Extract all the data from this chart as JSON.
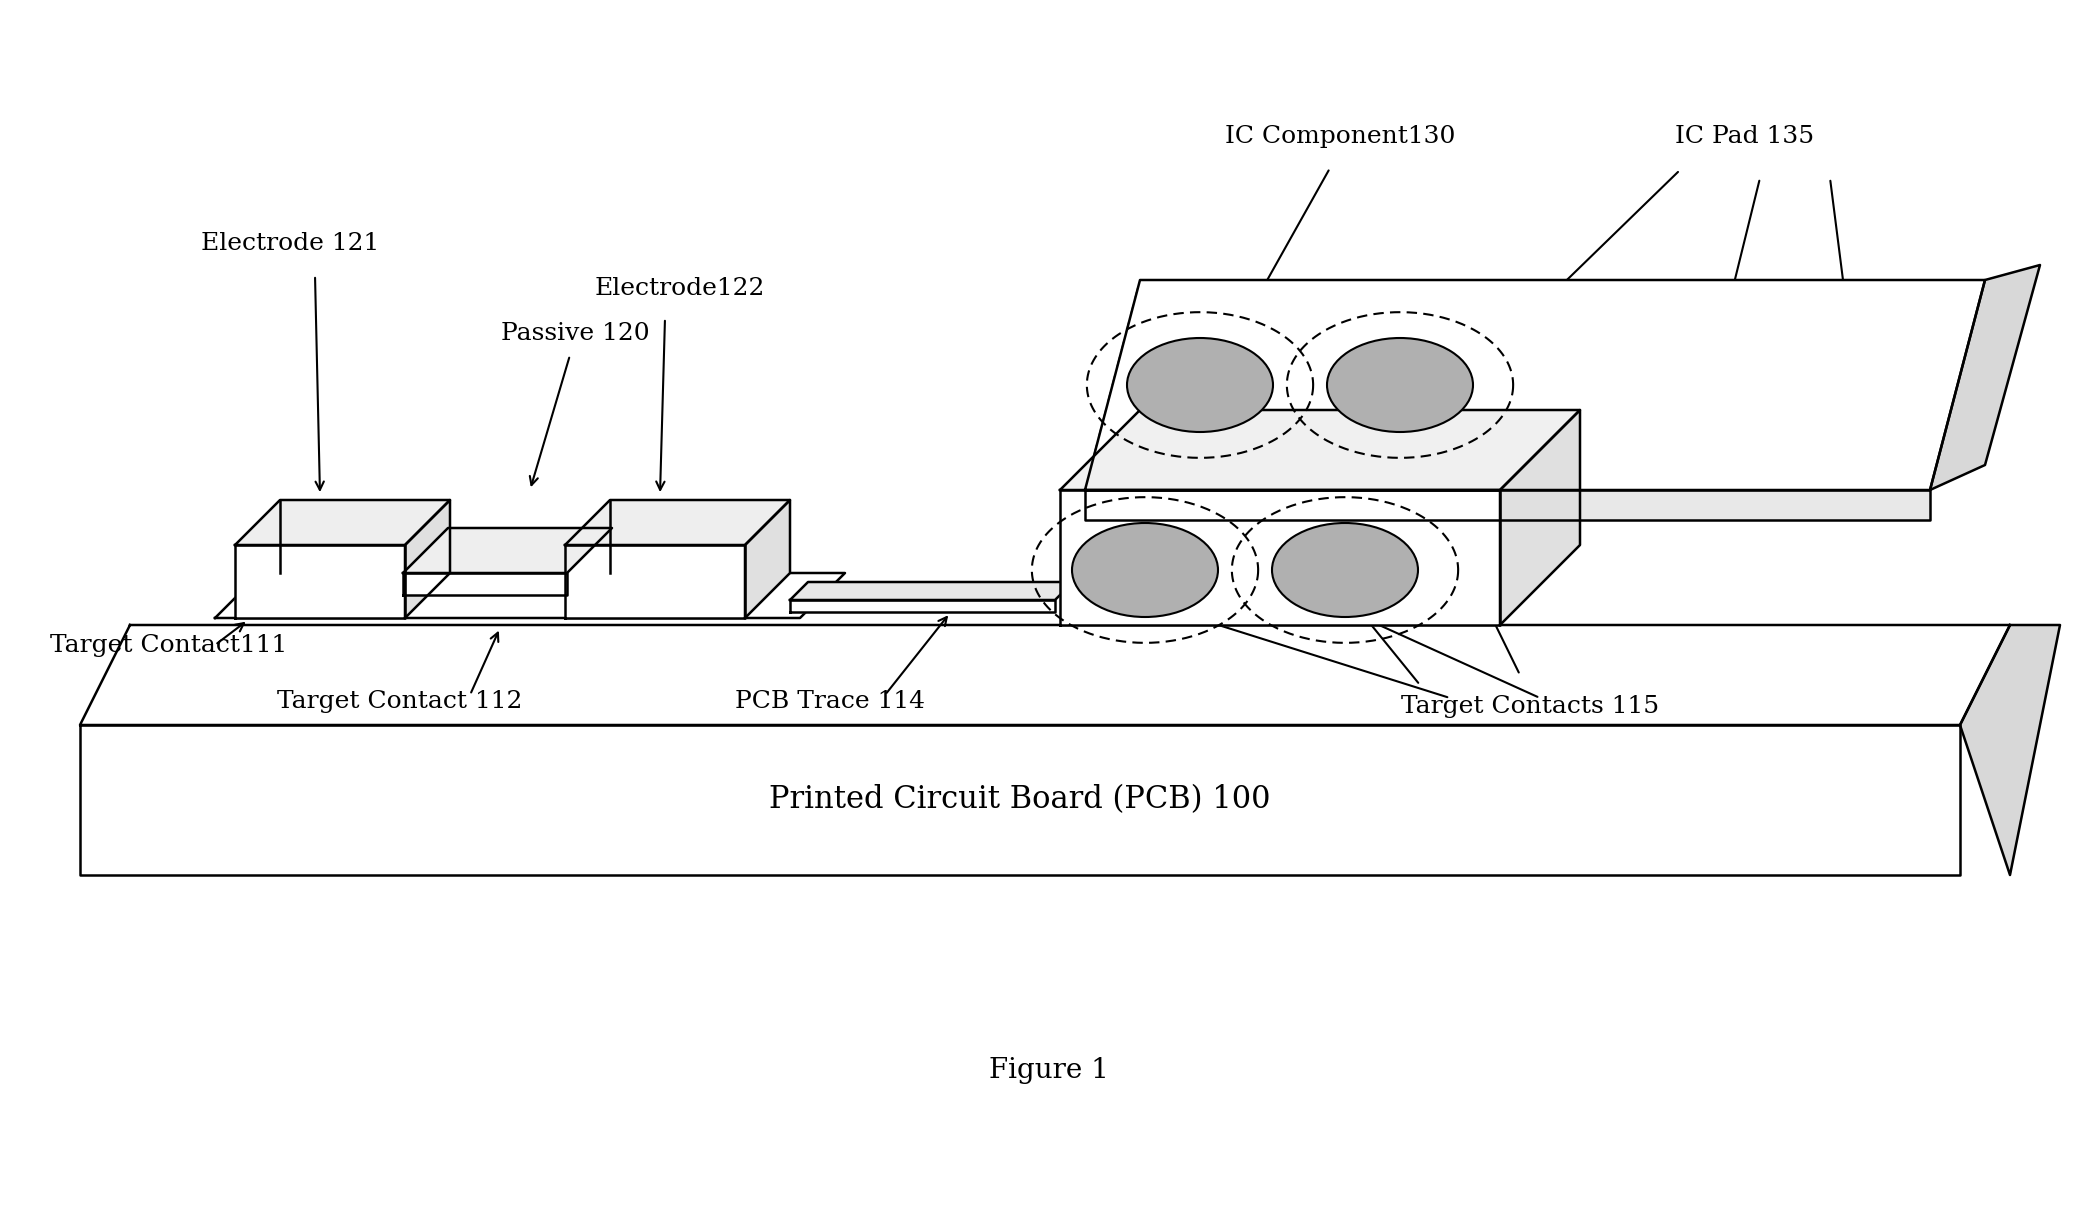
{
  "bg_color": "#ffffff",
  "line_color": "#000000",
  "labels": {
    "passive": "Passive 120",
    "electrode121": "Electrode 121",
    "electrode122": "Electrode122",
    "ic_component": "IC Component130",
    "ic_pad": "IC Pad 135",
    "target_contact111": "Target Contact111",
    "target_contact112": "Target Contact 112",
    "pcb_trace": "PCB Trace 114",
    "target_contacts115": "Target Contacts 115",
    "pcb": "Printed Circuit Board (PCB) 100",
    "figure": "Figure 1"
  },
  "font_size_labels": 18,
  "font_size_pcb": 22,
  "font_size_figure": 20
}
